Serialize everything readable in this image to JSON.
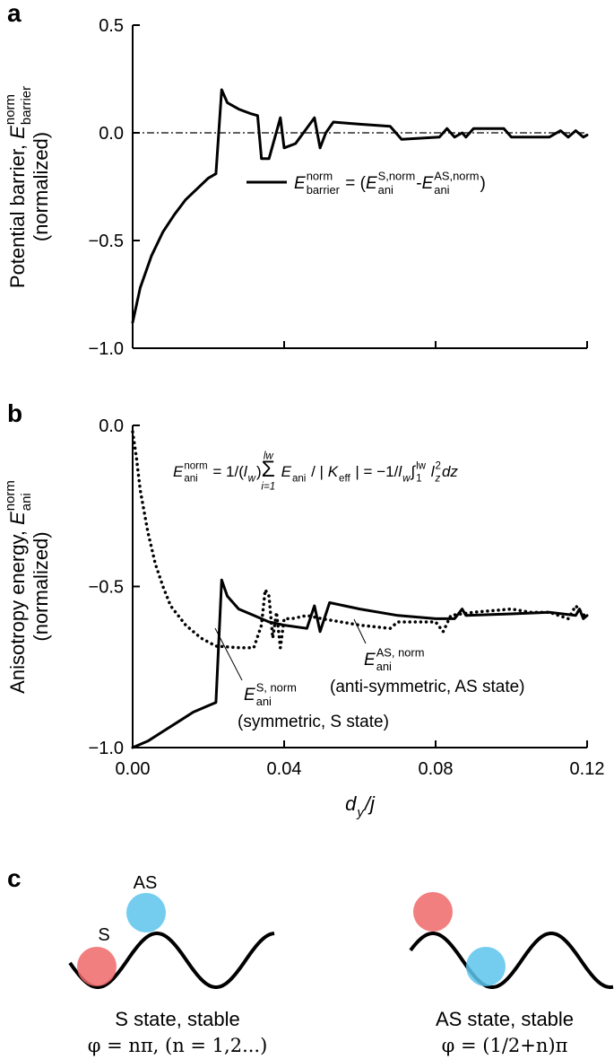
{
  "chart_data": [
    {
      "type": "line",
      "panel_label": "a",
      "y_label": {
        "line1": [
          {
            "t": "Potential barrier, "
          },
          {
            "t": "E",
            "i": true,
            "sup": "norm",
            "sub": "barrier"
          }
        ],
        "line2": [
          {
            "t": "(normalized)"
          }
        ]
      },
      "xlim": [
        0,
        0.12
      ],
      "xticks": [
        0,
        0.04,
        0.08,
        0.12
      ],
      "x_tick_labels": false,
      "ylim": [
        -1.0,
        0.5
      ],
      "yticks": [
        {
          "value": 0.5,
          "label": "0.5"
        },
        {
          "value": 0,
          "label": "0.0"
        },
        {
          "value": -0.5,
          "label": "−0.5"
        },
        {
          "value": -1.0,
          "label": "−1.0"
        }
      ],
      "reference_line": {
        "y": 0,
        "style": "dashdot"
      },
      "series": [
        {
          "name": [
            {
              "t": "E",
              "i": true,
              "sup": "norm",
              "sub": "barrier"
            },
            {
              "t": " = ("
            },
            {
              "t": "E",
              "i": true,
              "sup": "S,norm",
              "sub": "ani"
            },
            {
              "t": "-"
            },
            {
              "t": "E",
              "i": true,
              "sup": "AS,norm",
              "sub": "ani"
            },
            {
              "t": ")"
            }
          ],
          "color": "#000000",
          "line_style": "solid",
          "x": [
            0,
            0.002,
            0.005,
            0.008,
            0.011,
            0.014,
            0.017,
            0.02,
            0.022,
            0.0235,
            0.025,
            0.028,
            0.031,
            0.033,
            0.034,
            0.036,
            0.039,
            0.04,
            0.043,
            0.048,
            0.0495,
            0.051,
            0.053,
            0.06,
            0.068,
            0.071,
            0.081,
            0.083,
            0.085,
            0.087,
            0.088,
            0.09,
            0.098,
            0.1,
            0.11,
            0.113,
            0.115,
            0.117,
            0.119,
            0.12
          ],
          "values": [
            -0.88,
            -0.72,
            -0.57,
            -0.46,
            -0.38,
            -0.31,
            -0.26,
            -0.21,
            -0.19,
            0.2,
            0.14,
            0.11,
            0.09,
            0.08,
            -0.12,
            -0.12,
            0.07,
            -0.07,
            -0.05,
            0.07,
            -0.07,
            0.0,
            0.05,
            0.04,
            0.03,
            -0.03,
            -0.02,
            0.02,
            -0.02,
            0.0,
            -0.02,
            0.02,
            0.02,
            -0.02,
            -0.02,
            0.01,
            -0.02,
            0.01,
            -0.02,
            -0.01
          ]
        }
      ]
    },
    {
      "type": "line",
      "panel_label": "b",
      "y_label": {
        "line1": [
          {
            "t": "Anisotropy energy, "
          },
          {
            "t": "E",
            "i": true,
            "sup": "norm",
            "sub": "ani"
          }
        ],
        "line2": [
          {
            "t": "(normalized)"
          }
        ]
      },
      "x_label": [
        {
          "t": "d",
          "i": true,
          "sub": "y"
        },
        {
          "t": "/j",
          "i": true
        }
      ],
      "xlim": [
        0,
        0.12
      ],
      "xticks": [
        {
          "value": 0,
          "label": "0.00"
        },
        {
          "value": 0.04,
          "label": "0.04"
        },
        {
          "value": 0.08,
          "label": "0.08"
        },
        {
          "value": 0.12,
          "label": "0.12"
        }
      ],
      "x_tick_labels": true,
      "ylim": [
        -1.0,
        0
      ],
      "yticks": [
        {
          "value": 0,
          "label": "0.0"
        },
        {
          "value": -0.5,
          "label": "−0.5"
        },
        {
          "value": -1.0,
          "label": "−1.0"
        }
      ],
      "annotation": [
        {
          "t": "E",
          "i": true,
          "sup": "norm",
          "sub": "ani"
        },
        {
          "t": " = 1/("
        },
        {
          "t": "l",
          "i": true,
          "sub": "w"
        },
        {
          "t": ")"
        },
        {
          "t": "Σ",
          "big": true,
          "sup": "lw",
          "sub": "i=1"
        },
        {
          "t": " E",
          "i": true,
          "sub": "ani"
        },
        {
          "t": " / | "
        },
        {
          "t": "K",
          "i": true,
          "sub": "eff"
        },
        {
          "t": " | = −1/"
        },
        {
          "t": "l",
          "i": true,
          "sub": "w"
        },
        {
          "t": "∫",
          "sup": "lw",
          "sub": "1"
        },
        {
          "t": " l",
          "i": true,
          "sup": "2",
          "sub": "z"
        },
        {
          "t": "dz",
          "i": true
        }
      ],
      "series": [
        {
          "name": [
            {
              "t": "E",
              "i": true,
              "sup": "S, norm",
              "sub": "ani"
            }
          ],
          "note": "(symmetric, S state)",
          "color": "#000000",
          "line_style": "solid",
          "x": [
            0,
            0.004,
            0.008,
            0.012,
            0.016,
            0.02,
            0.022,
            0.0235,
            0.025,
            0.028,
            0.032,
            0.036,
            0.04,
            0.046,
            0.048,
            0.0495,
            0.052,
            0.06,
            0.07,
            0.08,
            0.085,
            0.087,
            0.088,
            0.1,
            0.11,
            0.117,
            0.118,
            0.119,
            0.12
          ],
          "values": [
            -1.0,
            -0.98,
            -0.95,
            -0.92,
            -0.89,
            -0.87,
            -0.86,
            -0.48,
            -0.53,
            -0.57,
            -0.59,
            -0.61,
            -0.62,
            -0.63,
            -0.56,
            -0.64,
            -0.55,
            -0.57,
            -0.59,
            -0.6,
            -0.6,
            -0.57,
            -0.59,
            -0.585,
            -0.58,
            -0.59,
            -0.57,
            -0.6,
            -0.59
          ]
        },
        {
          "name": [
            {
              "t": "E",
              "i": true,
              "sup": "AS, norm",
              "sub": "ani"
            }
          ],
          "note": "(anti-symmetric, AS state)",
          "color": "#000000",
          "line_style": "dotted",
          "x": [
            0,
            0.001,
            0.002,
            0.004,
            0.006,
            0.008,
            0.01,
            0.014,
            0.018,
            0.022,
            0.028,
            0.032,
            0.034,
            0.035,
            0.036,
            0.037,
            0.038,
            0.039,
            0.04,
            0.042,
            0.046,
            0.05,
            0.06,
            0.068,
            0.07,
            0.08,
            0.082,
            0.084,
            0.09,
            0.1,
            0.105,
            0.11,
            0.115,
            0.117,
            0.12
          ],
          "values": [
            -0.02,
            -0.1,
            -0.2,
            -0.33,
            -0.43,
            -0.5,
            -0.56,
            -0.62,
            -0.66,
            -0.685,
            -0.69,
            -0.69,
            -0.62,
            -0.51,
            -0.53,
            -0.66,
            -0.58,
            -0.69,
            -0.6,
            -0.6,
            -0.59,
            -0.6,
            -0.62,
            -0.63,
            -0.61,
            -0.61,
            -0.64,
            -0.59,
            -0.58,
            -0.57,
            -0.58,
            -0.58,
            -0.6,
            -0.56,
            -0.6
          ]
        }
      ]
    }
  ],
  "panel_c": {
    "label": "c",
    "left": {
      "ball_labels": [
        "S",
        "AS"
      ],
      "caption": "S state, stable",
      "formula": "φ = nπ, (n = 1,2...)"
    },
    "right": {
      "caption": "AS state, stable",
      "formula": "φ = (1/2+n)π"
    }
  }
}
